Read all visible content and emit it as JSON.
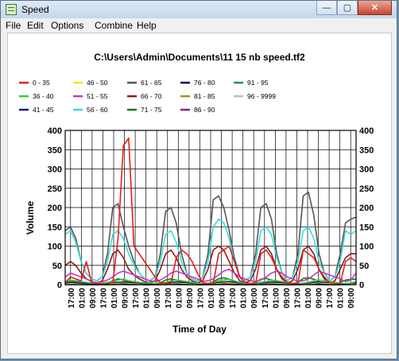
{
  "window": {
    "title": "Speed"
  },
  "window_buttons": {
    "minimize": "—",
    "maximize": "▢",
    "close": "✕"
  },
  "menu": {
    "items": [
      "File",
      "Edit",
      "Options",
      "Combine",
      "Help"
    ]
  },
  "chart_data": {
    "type": "line",
    "title": "C:\\Users\\Admin\\Documents\\11 15 nb speed.tf2",
    "xlabel": "Time of Day",
    "ylabel": "Volume",
    "ylim": [
      0,
      400
    ],
    "yticks": [
      0,
      50,
      100,
      150,
      200,
      250,
      300,
      350,
      400
    ],
    "xticks": [
      "17:00",
      "01:00",
      "09:00",
      "17:00",
      "01:00",
      "09:00",
      "17:00",
      "01:00",
      "09:00",
      "17:00",
      "01:00",
      "09:00",
      "17:00",
      "01:00",
      "09:00",
      "17:00",
      "01:00",
      "09:00",
      "17:00",
      "01:00",
      "09:00",
      "17:00",
      "01:00",
      "09:00",
      "17:00",
      "01:00",
      "09:00"
    ],
    "grid": true,
    "legend_placement": "top",
    "series": [
      {
        "name": "0 - 35",
        "color": "#e0201a",
        "values": [
          5,
          20,
          15,
          10,
          60,
          5,
          3,
          2,
          2,
          5,
          120,
          360,
          380,
          100,
          80,
          60,
          40,
          20,
          5,
          3,
          2,
          70,
          90,
          80,
          60,
          30,
          5,
          3,
          2,
          80,
          90,
          100,
          60,
          20,
          5,
          3,
          2,
          80,
          90,
          70,
          40,
          20,
          5,
          3,
          2,
          90,
          80,
          70,
          40,
          20,
          5,
          3,
          2,
          60,
          70,
          60
        ]
      },
      {
        "name": "36 - 40",
        "color": "#33cc33",
        "values": [
          8,
          12,
          10,
          8,
          6,
          4,
          3,
          4,
          6,
          8,
          12,
          14,
          10,
          8,
          6,
          5,
          4,
          3,
          4,
          6,
          10,
          12,
          10,
          8,
          6,
          4,
          3,
          4,
          6,
          10,
          12,
          14,
          10,
          6,
          4,
          3,
          4,
          6,
          8,
          12,
          10,
          8,
          6,
          4,
          3,
          4,
          6,
          10,
          12,
          10,
          8,
          6,
          4,
          3,
          4,
          8
        ]
      },
      {
        "name": "41 - 45",
        "color": "#1a1a8c",
        "values": [
          4,
          6,
          5,
          4,
          3,
          2,
          2,
          3,
          4,
          5,
          6,
          7,
          6,
          5,
          4,
          3,
          2,
          2,
          3,
          4,
          6,
          7,
          6,
          5,
          4,
          3,
          2,
          3,
          4,
          6,
          7,
          8,
          6,
          4,
          3,
          2,
          3,
          4,
          5,
          7,
          6,
          5,
          4,
          3,
          2,
          3,
          4,
          6,
          7,
          6,
          5,
          4,
          3,
          2,
          3,
          5
        ]
      },
      {
        "name": "46 - 50",
        "color": "#f2e600",
        "values": [
          2,
          3,
          3,
          2,
          2,
          1,
          1,
          2,
          2,
          3,
          4,
          5,
          4,
          3,
          2,
          2,
          1,
          1,
          2,
          3,
          4,
          5,
          4,
          3,
          2,
          2,
          1,
          2,
          3,
          4,
          5,
          5,
          4,
          3,
          2,
          1,
          2,
          3,
          4,
          5,
          4,
          3,
          2,
          2,
          1,
          2,
          3,
          4,
          5,
          4,
          3,
          2,
          2,
          1,
          2,
          3
        ]
      },
      {
        "name": "51 - 55",
        "color": "#cc33cc",
        "values": [
          20,
          30,
          25,
          20,
          15,
          8,
          5,
          8,
          12,
          20,
          30,
          35,
          30,
          25,
          20,
          15,
          10,
          8,
          12,
          20,
          30,
          35,
          30,
          25,
          20,
          15,
          8,
          10,
          15,
          25,
          35,
          40,
          30,
          20,
          15,
          10,
          8,
          12,
          20,
          30,
          35,
          30,
          20,
          15,
          8,
          10,
          15,
          25,
          35,
          30,
          25,
          20,
          15,
          8,
          12,
          30
        ]
      },
      {
        "name": "56 - 60",
        "color": "#33dddd",
        "values": [
          130,
          140,
          110,
          60,
          30,
          15,
          10,
          20,
          60,
          130,
          140,
          120,
          80,
          50,
          30,
          15,
          10,
          20,
          60,
          130,
          140,
          110,
          60,
          30,
          15,
          10,
          20,
          60,
          150,
          170,
          160,
          120,
          60,
          20,
          10,
          20,
          60,
          140,
          150,
          130,
          70,
          30,
          10,
          20,
          60,
          140,
          150,
          120,
          60,
          30,
          10,
          20,
          60,
          140,
          130,
          140
        ]
      },
      {
        "name": "61 - 65",
        "color": "#555555",
        "values": [
          140,
          150,
          120,
          60,
          30,
          15,
          10,
          20,
          80,
          200,
          210,
          150,
          100,
          60,
          30,
          15,
          10,
          20,
          80,
          190,
          200,
          160,
          80,
          30,
          15,
          10,
          20,
          80,
          220,
          230,
          200,
          140,
          70,
          20,
          10,
          20,
          80,
          200,
          210,
          170,
          80,
          30,
          10,
          20,
          80,
          230,
          240,
          180,
          80,
          30,
          10,
          20,
          80,
          160,
          170,
          175
        ]
      },
      {
        "name": "66 - 70",
        "color": "#8b1a1a",
        "values": [
          50,
          60,
          50,
          30,
          15,
          8,
          5,
          10,
          40,
          80,
          90,
          70,
          40,
          25,
          15,
          8,
          5,
          10,
          40,
          80,
          90,
          70,
          40,
          20,
          10,
          5,
          10,
          40,
          90,
          100,
          90,
          60,
          30,
          10,
          5,
          10,
          40,
          90,
          100,
          80,
          40,
          15,
          5,
          10,
          40,
          90,
          100,
          80,
          40,
          15,
          5,
          10,
          40,
          70,
          80,
          80
        ]
      },
      {
        "name": "71 - 75",
        "color": "#1a7a1a",
        "values": [
          5,
          8,
          7,
          5,
          3,
          2,
          2,
          3,
          5,
          10,
          15,
          12,
          8,
          5,
          3,
          2,
          2,
          3,
          5,
          12,
          15,
          12,
          8,
          5,
          3,
          2,
          2,
          3,
          8,
          15,
          18,
          14,
          8,
          4,
          2,
          3,
          6,
          14,
          16,
          12,
          8,
          4,
          2,
          3,
          6,
          16,
          18,
          14,
          8,
          4,
          2,
          3,
          6,
          12,
          14,
          14
        ]
      },
      {
        "name": "76 - 80",
        "color": "#000066",
        "values": [
          1,
          2,
          2,
          1,
          1,
          0,
          0,
          1,
          1,
          2,
          3,
          3,
          2,
          1,
          1,
          0,
          0,
          1,
          1,
          2,
          3,
          3,
          2,
          1,
          1,
          0,
          0,
          1,
          2,
          3,
          3,
          3,
          2,
          1,
          0,
          0,
          1,
          2,
          3,
          3,
          2,
          1,
          0,
          0,
          1,
          2,
          3,
          3,
          2,
          1,
          0,
          0,
          1,
          2,
          2,
          2
        ]
      },
      {
        "name": "81 - 85",
        "color": "#999900",
        "values": [
          1,
          1,
          1,
          1,
          0,
          0,
          0,
          0,
          1,
          1,
          2,
          2,
          1,
          1,
          0,
          0,
          0,
          0,
          1,
          1,
          2,
          2,
          1,
          1,
          0,
          0,
          0,
          0,
          1,
          2,
          2,
          2,
          1,
          1,
          0,
          0,
          0,
          1,
          2,
          2,
          1,
          1,
          0,
          0,
          0,
          1,
          2,
          2,
          1,
          1,
          0,
          0,
          0,
          1,
          1,
          1
        ]
      },
      {
        "name": "86 - 90",
        "color": "#882288",
        "values": [
          0,
          1,
          1,
          0,
          0,
          0,
          0,
          0,
          0,
          1,
          1,
          1,
          1,
          0,
          0,
          0,
          0,
          0,
          0,
          1,
          1,
          1,
          1,
          0,
          0,
          0,
          0,
          0,
          1,
          1,
          1,
          1,
          0,
          0,
          0,
          0,
          0,
          1,
          1,
          1,
          1,
          0,
          0,
          0,
          0,
          1,
          1,
          1,
          1,
          0,
          0,
          0,
          0,
          1,
          1,
          1
        ]
      },
      {
        "name": "91 - 95",
        "color": "#1a8c8c",
        "values": [
          0,
          0,
          0,
          0,
          0,
          0,
          0,
          0,
          0,
          0,
          1,
          1,
          0,
          0,
          0,
          0,
          0,
          0,
          0,
          0,
          1,
          1,
          0,
          0,
          0,
          0,
          0,
          0,
          0,
          1,
          1,
          1,
          0,
          0,
          0,
          0,
          0,
          0,
          1,
          1,
          0,
          0,
          0,
          0,
          0,
          0,
          1,
          1,
          0,
          0,
          0,
          0,
          0,
          0,
          1,
          1
        ]
      },
      {
        "name": "96 - 9999",
        "color": "#bbbbbb",
        "values": [
          0,
          0,
          0,
          0,
          0,
          0,
          0,
          0,
          0,
          0,
          0,
          0,
          0,
          0,
          0,
          0,
          0,
          0,
          0,
          0,
          0,
          0,
          0,
          0,
          0,
          0,
          0,
          0,
          0,
          0,
          0,
          0,
          0,
          0,
          0,
          0,
          0,
          0,
          0,
          0,
          0,
          0,
          0,
          0,
          0,
          0,
          0,
          0,
          0,
          0,
          0,
          0,
          0,
          0,
          0,
          0
        ]
      }
    ]
  }
}
